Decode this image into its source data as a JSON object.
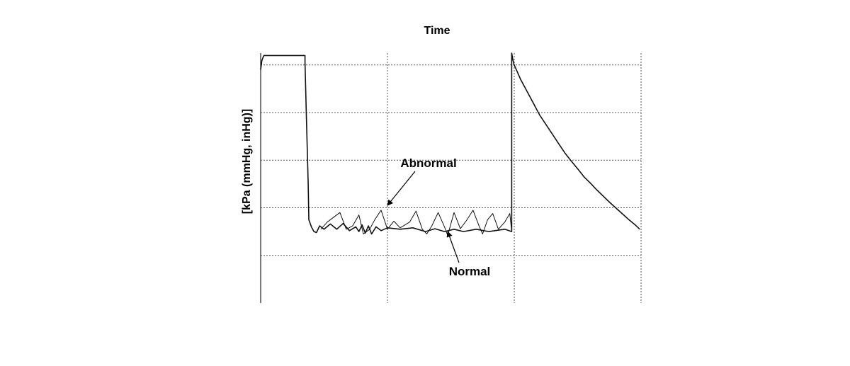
{
  "chart_data": {
    "type": "line",
    "title": "Time",
    "xlabel": "",
    "ylabel": "[kPa (mmHg, inHg)]",
    "xlim": [
      0,
      6
    ],
    "ylim": [
      0,
      5.25
    ],
    "grid": true,
    "annotations": [
      {
        "text": "Abnormal",
        "target_series": "Abnormal",
        "at": [
          2.0,
          2.05
        ]
      },
      {
        "text": "Normal",
        "target_series": "Normal",
        "at": [
          2.95,
          1.5
        ]
      }
    ],
    "series": [
      {
        "name": "Normal",
        "points": [
          [
            0,
            4.9
          ],
          [
            0.02,
            5.1
          ],
          [
            0.05,
            5.2
          ],
          [
            0.7,
            5.2
          ],
          [
            0.7,
            5.05
          ],
          [
            0.72,
            4.0
          ],
          [
            0.75,
            2.5
          ],
          [
            0.76,
            1.75
          ],
          [
            0.8,
            1.6
          ],
          [
            0.84,
            1.5
          ],
          [
            0.88,
            1.48
          ],
          [
            0.93,
            1.62
          ],
          [
            1.0,
            1.55
          ],
          [
            1.1,
            1.66
          ],
          [
            1.2,
            1.55
          ],
          [
            1.3,
            1.67
          ],
          [
            1.4,
            1.52
          ],
          [
            1.5,
            1.6
          ],
          [
            1.55,
            1.5
          ],
          [
            1.6,
            1.64
          ],
          [
            1.65,
            1.47
          ],
          [
            1.7,
            1.62
          ],
          [
            1.75,
            1.45
          ],
          [
            1.82,
            1.6
          ],
          [
            1.9,
            1.52
          ],
          [
            2.0,
            1.58
          ],
          [
            2.2,
            1.55
          ],
          [
            2.4,
            1.58
          ],
          [
            2.6,
            1.5
          ],
          [
            2.75,
            1.56
          ],
          [
            2.9,
            1.5
          ],
          [
            3.05,
            1.55
          ],
          [
            3.2,
            1.5
          ],
          [
            3.4,
            1.55
          ],
          [
            3.6,
            1.5
          ],
          [
            3.85,
            1.55
          ],
          [
            3.96,
            1.5
          ],
          [
            3.96,
            5.25
          ],
          [
            3.98,
            5.1
          ],
          [
            4.0,
            5.0
          ],
          [
            4.05,
            4.85
          ],
          [
            4.1,
            4.7
          ],
          [
            4.2,
            4.45
          ],
          [
            4.3,
            4.2
          ],
          [
            4.4,
            3.95
          ],
          [
            4.5,
            3.75
          ],
          [
            4.6,
            3.55
          ],
          [
            4.7,
            3.35
          ],
          [
            4.8,
            3.15
          ],
          [
            4.9,
            2.98
          ],
          [
            5.0,
            2.82
          ],
          [
            5.1,
            2.65
          ],
          [
            5.2,
            2.52
          ],
          [
            5.3,
            2.38
          ],
          [
            5.4,
            2.25
          ],
          [
            5.5,
            2.12
          ],
          [
            5.6,
            2.0
          ],
          [
            5.7,
            1.88
          ],
          [
            5.8,
            1.76
          ],
          [
            5.9,
            1.65
          ],
          [
            5.98,
            1.55
          ]
        ]
      },
      {
        "name": "Abnormal",
        "points": [
          [
            0.95,
            1.55
          ],
          [
            1.05,
            1.7
          ],
          [
            1.25,
            1.9
          ],
          [
            1.35,
            1.55
          ],
          [
            1.45,
            1.62
          ],
          [
            1.55,
            1.85
          ],
          [
            1.62,
            1.45
          ],
          [
            1.72,
            1.55
          ],
          [
            1.8,
            1.75
          ],
          [
            1.9,
            1.95
          ],
          [
            2.0,
            1.55
          ],
          [
            2.1,
            1.72
          ],
          [
            2.2,
            1.58
          ],
          [
            2.35,
            1.7
          ],
          [
            2.45,
            1.93
          ],
          [
            2.55,
            1.55
          ],
          [
            2.62,
            1.45
          ],
          [
            2.7,
            1.62
          ],
          [
            2.8,
            1.9
          ],
          [
            2.9,
            1.6
          ],
          [
            2.95,
            1.42
          ],
          [
            3.05,
            1.9
          ],
          [
            3.15,
            1.56
          ],
          [
            3.25,
            1.74
          ],
          [
            3.35,
            1.95
          ],
          [
            3.45,
            1.6
          ],
          [
            3.5,
            1.45
          ],
          [
            3.58,
            1.75
          ],
          [
            3.66,
            1.88
          ],
          [
            3.75,
            1.55
          ],
          [
            3.85,
            1.7
          ],
          [
            3.93,
            1.88
          ],
          [
            3.96,
            1.5
          ]
        ]
      }
    ]
  }
}
